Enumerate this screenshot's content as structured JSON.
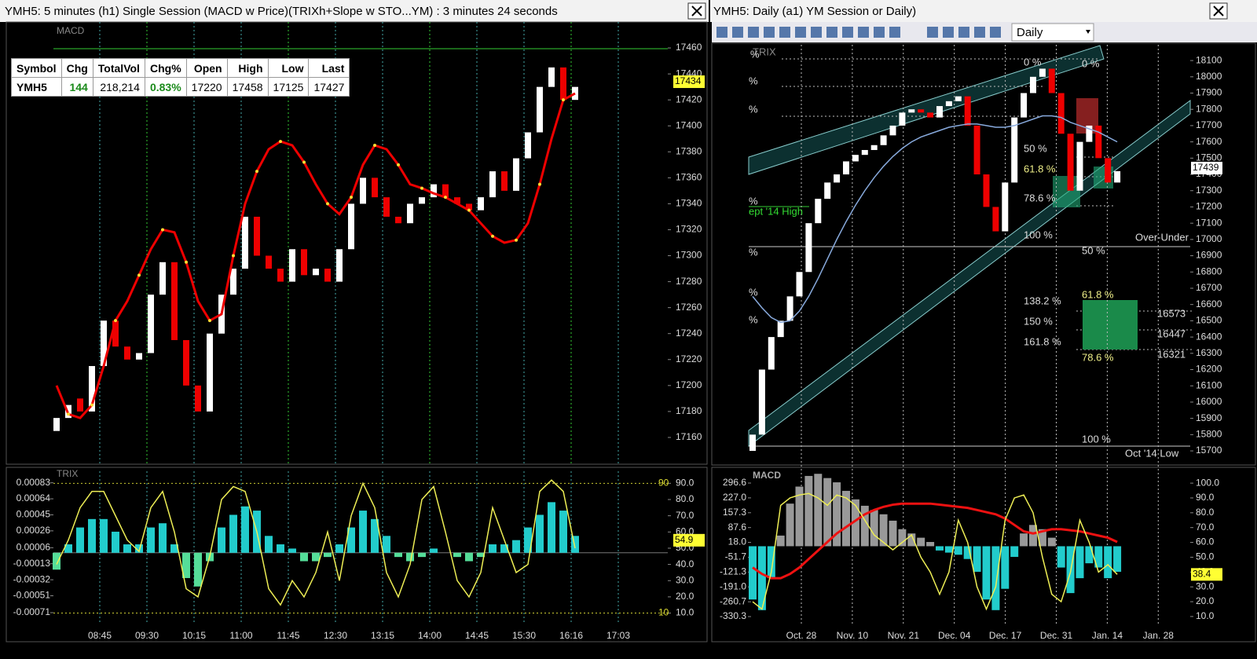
{
  "left": {
    "title": "YMH5: 5 minutes (h1) Single Session (MACD w Price)(TRIXh+Slope w STO...YM) : 3 minutes 24 seconds",
    "price_panel": {
      "label": "MACD",
      "ylim": [
        17140,
        17480
      ],
      "yticks": [
        17160,
        17180,
        17200,
        17220,
        17240,
        17260,
        17280,
        17300,
        17320,
        17340,
        17360,
        17380,
        17400,
        17420,
        17440,
        17460
      ],
      "last_price": 17434,
      "candles": {
        "open": [
          17165,
          17175,
          17190,
          17180,
          17215,
          17250,
          17230,
          17220,
          17225,
          17270,
          17295,
          17235,
          17200,
          17180,
          17240,
          17270,
          17290,
          17330,
          17300,
          17290,
          17280,
          17305,
          17285,
          17290,
          17280,
          17305,
          17340,
          17360,
          17345,
          17330,
          17325,
          17340,
          17345,
          17355,
          17345,
          17340,
          17335,
          17345,
          17365,
          17350,
          17375,
          17395,
          17430,
          17445,
          17420
        ],
        "close": [
          17175,
          17185,
          17180,
          17215,
          17250,
          17230,
          17220,
          17225,
          17270,
          17295,
          17235,
          17200,
          17180,
          17240,
          17270,
          17290,
          17330,
          17300,
          17290,
          17280,
          17305,
          17285,
          17290,
          17280,
          17305,
          17340,
          17360,
          17345,
          17330,
          17325,
          17340,
          17345,
          17355,
          17345,
          17340,
          17335,
          17345,
          17365,
          17350,
          17375,
          17395,
          17430,
          17445,
          17420,
          17430
        ]
      },
      "trix_line": [
        17200,
        17178,
        17175,
        17185,
        17215,
        17250,
        17265,
        17285,
        17305,
        17320,
        17318,
        17295,
        17265,
        17250,
        17255,
        17300,
        17340,
        17365,
        17382,
        17388,
        17385,
        17372,
        17355,
        17340,
        17332,
        17345,
        17370,
        17385,
        17382,
        17370,
        17355,
        17352,
        17348,
        17345,
        17340,
        17335,
        17325,
        17315,
        17310,
        17312,
        17325,
        17355,
        17390,
        17420,
        17425
      ]
    },
    "quote_table": {
      "headers": [
        "Symbol",
        "Chg",
        "TotalVol",
        "Chg%",
        "Open",
        "High",
        "Low",
        "Last"
      ],
      "row": [
        "YMH5",
        "144",
        "218,214",
        "0.83%",
        "17220",
        "17458",
        "17125",
        "17427"
      ]
    },
    "trix_panel": {
      "label": "TRIX",
      "ylim": [
        -0.00085,
        0.00092
      ],
      "yticks": [
        0.00083,
        0.00064,
        0.00045,
        0.00026,
        6e-05,
        -0.00013,
        -0.00032,
        -0.00051,
        -0.00071
      ],
      "y2lim": [
        3,
        95
      ],
      "y2ticks": [
        {
          "value": 90,
          "label": "90.0"
        },
        {
          "value": 80,
          "label": "80.0"
        },
        {
          "value": 70,
          "label": "70.0"
        },
        {
          "value": 60,
          "label": "60.0"
        },
        {
          "value": 50,
          "label": "50.0"
        },
        {
          "value": 40,
          "label": "40.0"
        },
        {
          "value": 30,
          "label": "30.0"
        },
        {
          "value": 20,
          "label": "20.0"
        },
        {
          "value": 10,
          "label": "10.0"
        }
      ],
      "stoch_levels": [
        90,
        10
      ],
      "current_stoch": 54.9,
      "histogram": [
        -0.0002,
        0.0001,
        0.0003,
        0.0004,
        0.0004,
        0.00025,
        0.0001,
        0.0001,
        0.0003,
        0.00035,
        0.0001,
        -0.0003,
        -0.0004,
        -0.0001,
        0.0003,
        0.00045,
        0.00055,
        0.0005,
        0.0002,
        0.0001,
        5e-05,
        -0.0001,
        -0.0001,
        -5e-05,
        0.0001,
        0.0003,
        0.0005,
        0.0004,
        0.0002,
        -5e-05,
        -0.0001,
        -5e-05,
        5e-05,
        0,
        -5e-05,
        -0.0001,
        -5e-05,
        0.0001,
        0.0001,
        0.00015,
        0.0003,
        0.00045,
        0.0006,
        0.0005,
        0.0002
      ],
      "stoch": [
        40,
        55,
        75,
        85,
        85,
        70,
        55,
        48,
        75,
        85,
        60,
        25,
        20,
        45,
        80,
        88,
        85,
        60,
        25,
        15,
        30,
        20,
        35,
        60,
        30,
        70,
        90,
        75,
        35,
        20,
        40,
        80,
        88,
        60,
        30,
        20,
        35,
        75,
        55,
        35,
        40,
        85,
        92,
        85,
        50
      ]
    },
    "x_labels": [
      "08:45",
      "09:30",
      "10:15",
      "11:00",
      "11:45",
      "12:30",
      "13:15",
      "14:00",
      "14:45",
      "15:30",
      "16:16",
      "17:03"
    ]
  },
  "right": {
    "title": "YMH5: Daily (a1) YM   Session or Daily)",
    "interval": "Daily",
    "price_panel": {
      "ylim": [
        15623,
        18197
      ],
      "yticks": [
        15700,
        15800,
        15900,
        16000,
        16100,
        16200,
        16300,
        16400,
        16500,
        16600,
        16700,
        16800,
        16900,
        17000,
        17100,
        17200,
        17300,
        17400,
        17500,
        17600,
        17700,
        17800,
        17900,
        18000,
        18100
      ],
      "last_price": 17439,
      "candles": {
        "open": [
          15700,
          15800,
          16200,
          16400,
          16500,
          16650,
          16800,
          17100,
          17250,
          17350,
          17400,
          17480,
          17520,
          17550,
          17580,
          17640,
          17700,
          17780,
          17800,
          17780,
          17750,
          17820,
          17850,
          17880,
          17700,
          17400,
          17200,
          17050,
          17350,
          17750,
          17900,
          18000,
          18050,
          17900,
          17650,
          17300,
          17600,
          17700,
          17500,
          17350
        ],
        "close": [
          15800,
          16200,
          16400,
          16500,
          16650,
          16800,
          17100,
          17250,
          17350,
          17400,
          17480,
          17520,
          17550,
          17580,
          17640,
          17700,
          17780,
          17800,
          17780,
          17750,
          17820,
          17850,
          17880,
          17700,
          17400,
          17200,
          17050,
          17350,
          17750,
          17900,
          18000,
          18050,
          17900,
          17650,
          17300,
          17600,
          17700,
          17500,
          17350,
          17420
        ]
      },
      "average": [
        16650,
        16580,
        16520,
        16490,
        16500,
        16560,
        16650,
        16760,
        16880,
        17000,
        17110,
        17210,
        17300,
        17380,
        17450,
        17510,
        17560,
        17600,
        17630,
        17650,
        17670,
        17690,
        17700,
        17710,
        17710,
        17700,
        17690,
        17690,
        17700,
        17720,
        17740,
        17760,
        17760,
        17750,
        17720,
        17700,
        17680,
        17660,
        17630,
        17600
      ],
      "annotations": [
        "TRIX",
        "%",
        "%",
        "%",
        "%",
        "%",
        "%",
        "%",
        "0 %",
        "0 %",
        "50 %",
        "61.8 %",
        "78.6 %",
        "100 %",
        "Over-Under",
        "50 %",
        "61.8 %",
        "138.2 %",
        "150 %",
        "161.8 %",
        "78.6 %",
        "16573",
        "16447",
        "16321",
        "100 %",
        "Oct '14 Low",
        "ept '14 High"
      ]
    },
    "macd_panel": {
      "label": "MACD",
      "ylim": [
        -385.6,
        351.9
      ],
      "yticks": [
        296.6,
        {
          "value": 227,
          "label": "227.0"
        },
        157.3,
        87.6,
        {
          "value": 18,
          "label": "18.0"
        },
        -51.7,
        -121.3,
        {
          "value": -191,
          "label": "-191.0"
        },
        -260.7,
        -330.3
      ],
      "y2lim": [
        2,
        108
      ],
      "y2ticks": [
        {
          "value": 100,
          "label": "100.0"
        },
        {
          "value": 90,
          "label": "90.0"
        },
        {
          "value": 80,
          "label": "80.0"
        },
        {
          "value": 70,
          "label": "70.0"
        },
        {
          "value": 60,
          "label": "60.0"
        },
        {
          "value": 50,
          "label": "50.0"
        },
        {
          "value": 40,
          "label": "40.0"
        },
        {
          "value": 30,
          "label": "30.0"
        },
        {
          "value": 20,
          "label": "20.0"
        },
        {
          "value": 10,
          "label": "10.0"
        }
      ],
      "current_stoch": 38.4,
      "histogram": [
        -250,
        -300,
        -150,
        50,
        200,
        280,
        330,
        340,
        320,
        300,
        260,
        220,
        190,
        170,
        150,
        120,
        80,
        60,
        40,
        20,
        -20,
        -30,
        -40,
        -60,
        -120,
        -250,
        -300,
        -200,
        -50,
        60,
        100,
        80,
        40,
        -100,
        -220,
        -150,
        -80,
        -100,
        -150,
        -120
      ],
      "signal": [
        -100,
        -130,
        -150,
        -150,
        -130,
        -100,
        -60,
        -20,
        20,
        60,
        90,
        120,
        150,
        170,
        185,
        195,
        200,
        200,
        200,
        200,
        195,
        190,
        185,
        180,
        170,
        160,
        150,
        130,
        100,
        70,
        60,
        70,
        80,
        80,
        75,
        70,
        60,
        50,
        40,
        20
      ],
      "stoch": [
        20,
        15,
        40,
        85,
        90,
        92,
        93,
        90,
        85,
        92,
        90,
        85,
        75,
        65,
        60,
        55,
        60,
        65,
        50,
        40,
        25,
        40,
        75,
        60,
        30,
        15,
        30,
        75,
        90,
        92,
        80,
        50,
        25,
        20,
        40,
        75,
        60,
        40,
        45,
        38.4
      ]
    },
    "x_labels": [
      "Oct. 28",
      "Nov. 10",
      "Nov. 21",
      "Dec. 04",
      "Dec. 17",
      "Dec. 31",
      "Jan. 14",
      "Jan. 28"
    ]
  }
}
